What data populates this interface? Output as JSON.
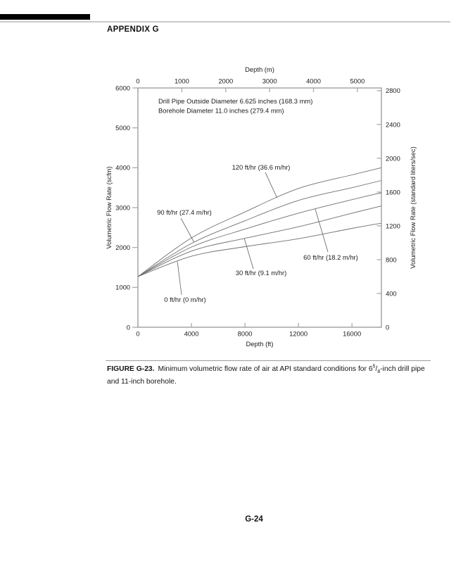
{
  "page": {
    "header": {
      "title": "APPENDIX G"
    },
    "footer": {
      "page_number": "G-24"
    },
    "caption": {
      "label": "FIGURE G-23.",
      "body_prefix": "Minimum volumetric flow rate of air at API standard conditions for 6",
      "fraction": {
        "sup": "5",
        "slash": "/",
        "sub": "8"
      },
      "body_suffix": "-inch drill pipe and 11-inch borehole."
    }
  },
  "colors": {
    "axis": "#ababab",
    "curve": "#6f6f6f",
    "leader": "#6f6f6f",
    "chart_text": "#1c1c1c",
    "header_bar": "#000000"
  },
  "chart_data": {
    "type": "line",
    "title": "",
    "x": [
      0,
      4000,
      8000,
      12000,
      16000,
      18200
    ],
    "series": [
      {
        "name": "120 ft/hr (36.6 m/hr)",
        "values": [
          1270,
          2240,
          2890,
          3480,
          3820,
          4000
        ]
      },
      {
        "name": "90 ft/hr (27.4 m/hr)",
        "values": [
          1270,
          2100,
          2670,
          3180,
          3500,
          3680
        ]
      },
      {
        "name": "60 ft/hr (18.2 m/hr)",
        "values": [
          1270,
          2010,
          2460,
          2860,
          3200,
          3370
        ]
      },
      {
        "name": "30 ft/hr (9.1 m/hr)",
        "values": [
          1270,
          1910,
          2230,
          2520,
          2860,
          3040
        ]
      },
      {
        "name": "0 ft/hr (0 m/hr)",
        "values": [
          1270,
          1780,
          2020,
          2220,
          2480,
          2610
        ]
      }
    ],
    "axes": {
      "bottom": {
        "label": "Depth (ft)",
        "ticks": [
          0,
          4000,
          8000,
          12000,
          16000
        ],
        "range": [
          0,
          18200
        ]
      },
      "top": {
        "label": "Depth (m)",
        "ticks": [
          0,
          1000,
          2000,
          3000,
          4000,
          5000
        ],
        "range": [
          0,
          5547
        ]
      },
      "left": {
        "label": "Volumetric Flow Rate (scfm)",
        "ticks": [
          0,
          1000,
          2000,
          3000,
          4000,
          5000,
          6000
        ],
        "range": [
          0,
          6000
        ]
      },
      "right": {
        "label": "Volumetric Flow Rate (standard liters/sec)",
        "ticks": [
          0,
          400,
          800,
          1200,
          1600,
          2000,
          2400,
          2800
        ],
        "range": [
          0,
          2832
        ]
      }
    },
    "annotations": [
      "Drill Pipe Outside Diameter 6.625 inches (168.3 mm)",
      "Borehole Diameter 11.0 inches (279.4 mm)"
    ],
    "grid": false,
    "legend": "labels-on-curves"
  }
}
